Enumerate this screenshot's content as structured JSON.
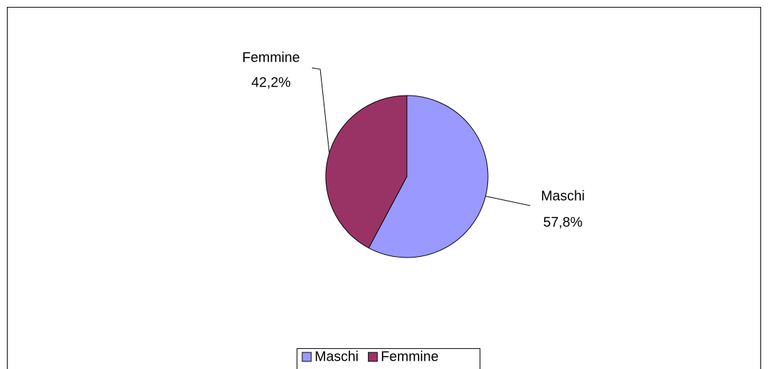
{
  "chart_data": {
    "type": "pie",
    "categories": [
      "Maschi",
      "Femmine"
    ],
    "values": [
      57.8,
      42.2
    ],
    "value_labels": [
      "57,8%",
      "42,2%"
    ],
    "colors": [
      "#9999ff",
      "#993366"
    ],
    "legend": "bottom"
  }
}
